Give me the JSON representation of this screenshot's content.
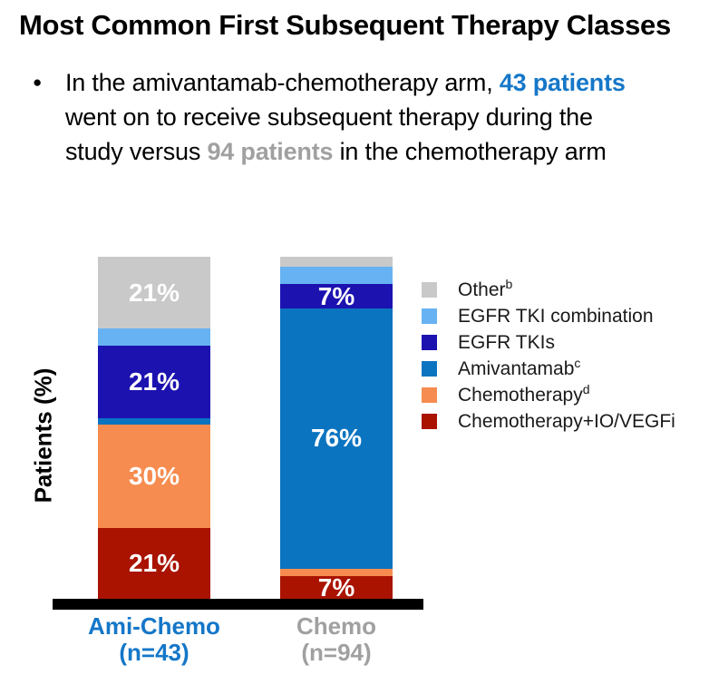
{
  "title": "Most Common First Subsequent Therapy Classes",
  "bullet": {
    "marker": "●",
    "segments": [
      {
        "text": "In the amivantamab-chemotherapy arm, "
      },
      {
        "text": "43 patients"
      },
      {
        "text": " went on to receive subsequent therapy during the study versus "
      },
      {
        "text": "94 patients"
      },
      {
        "text": " in the chemotherapy arm"
      }
    ]
  },
  "colors": {
    "accent_blue": "#1577c8",
    "accent_gray": "#a0a0a0",
    "axis_black": "#000000",
    "label_white": "#ffffff"
  },
  "chart_data": {
    "type": "bar",
    "stacked": true,
    "ylabel": "Patients (%)",
    "ylim": [
      0,
      100
    ],
    "grid": false,
    "legend_position": "right",
    "categories": [
      {
        "label": "Ami-Chemo",
        "sub": "(n=43)",
        "color": "#1577c8"
      },
      {
        "label": "Chemo",
        "sub": "(n=94)",
        "color": "#a0a0a0"
      }
    ],
    "series": [
      {
        "name": "Chemotherapy+IO/VEGFi",
        "color": "#a91300",
        "values": [
          21,
          7
        ],
        "labels": [
          "21%",
          "7%"
        ]
      },
      {
        "name": "Chemotherapy",
        "color": "#f68c4f",
        "values": [
          30,
          2
        ],
        "labels": [
          "30%",
          ""
        ]
      },
      {
        "name": "Amivantamab",
        "color": "#0b74c0",
        "values": [
          2,
          76
        ],
        "labels": [
          "",
          "76%"
        ]
      },
      {
        "name": "EGFR TKIs",
        "color": "#1c12b0",
        "values": [
          21,
          7
        ],
        "labels": [
          "21%",
          "7%"
        ]
      },
      {
        "name": "EGFR TKI combination",
        "color": "#66b2f2",
        "values": [
          5,
          5
        ],
        "labels": [
          "",
          ""
        ]
      },
      {
        "name": "Other",
        "color": "#c9c9c9",
        "values": [
          21,
          3
        ],
        "labels": [
          "21%",
          ""
        ]
      }
    ],
    "legend": [
      {
        "label": "Other",
        "sup": "b",
        "color": "#c9c9c9"
      },
      {
        "label": "EGFR TKI combination",
        "sup": "",
        "color": "#66b2f2"
      },
      {
        "label": "EGFR TKIs",
        "sup": "",
        "color": "#1c12b0"
      },
      {
        "label": "Amivantamab",
        "sup": "c",
        "color": "#0b74c0"
      },
      {
        "label": "Chemotherapy",
        "sup": "d",
        "color": "#f68c4f"
      },
      {
        "label": "Chemotherapy+IO/VEGFi",
        "sup": "",
        "color": "#a91300"
      }
    ]
  }
}
